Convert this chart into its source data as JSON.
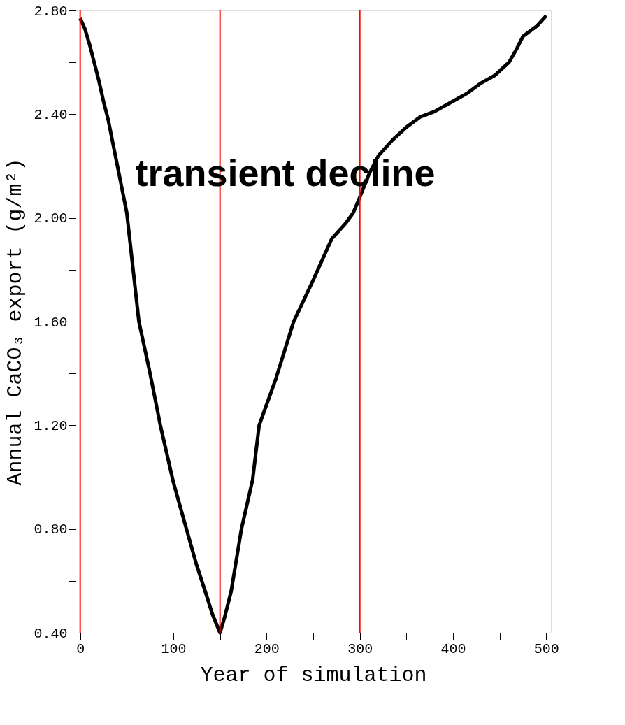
{
  "chart_data": {
    "type": "line",
    "xlabel": "Year of simulation",
    "ylabel": "Annual CaCO₃ export (g/m²)",
    "annotations": [
      "transient decline"
    ],
    "x": [
      0,
      5,
      10,
      15,
      20,
      25,
      30,
      35,
      40,
      50,
      63,
      75,
      86,
      100,
      114,
      125,
      135,
      142,
      150,
      155,
      162,
      173,
      185,
      192,
      210,
      229,
      250,
      270,
      285,
      293,
      300,
      310,
      320,
      335,
      350,
      365,
      380,
      400,
      415,
      430,
      445,
      460,
      468,
      475,
      490,
      500
    ],
    "series": [
      {
        "color": "#000000",
        "values": [
          2.77,
          2.73,
          2.67,
          2.6,
          2.53,
          2.45,
          2.38,
          2.29,
          2.2,
          2.02,
          1.6,
          1.4,
          1.2,
          0.98,
          0.8,
          0.66,
          0.55,
          0.47,
          0.4,
          0.46,
          0.56,
          0.8,
          0.99,
          1.2,
          1.38,
          1.6,
          1.76,
          1.92,
          1.98,
          2.02,
          2.08,
          2.17,
          2.24,
          2.3,
          2.35,
          2.39,
          2.41,
          2.45,
          2.48,
          2.52,
          2.55,
          2.6,
          2.65,
          2.7,
          2.74,
          2.78
        ]
      }
    ],
    "xlim": [
      -5,
      505
    ],
    "xticks": [
      0,
      {
        "value": 50,
        "label": null
      },
      100,
      {
        "value": 150,
        "label": null
      },
      200,
      {
        "value": 250,
        "label": null
      },
      300,
      {
        "value": 350,
        "label": null
      },
      400,
      {
        "value": 450,
        "label": null
      },
      500
    ],
    "ylim": [
      0.4,
      2.8
    ],
    "yticks": [
      {
        "value": 0.4,
        "label": "0.40"
      },
      {
        "value": 0.6,
        "label": null
      },
      {
        "value": 0.8,
        "label": "0.80"
      },
      {
        "value": 1.0,
        "label": null
      },
      {
        "value": 1.2,
        "label": "1.20"
      },
      {
        "value": 1.4,
        "label": null
      },
      {
        "value": 1.6,
        "label": "1.60"
      },
      {
        "value": 1.8,
        "label": null
      },
      {
        "value": 2.0,
        "label": "2.00"
      },
      {
        "value": 2.2,
        "label": null
      },
      {
        "value": 2.4,
        "label": "2.40"
      },
      {
        "value": 2.6,
        "label": null
      },
      {
        "value": 2.8,
        "label": "2.80"
      }
    ],
    "ref_lines": [
      {
        "axis": "x",
        "value": 0,
        "color": "#ff0000"
      },
      {
        "axis": "x",
        "value": 150,
        "color": "#ff0000"
      },
      {
        "axis": "x",
        "value": 300,
        "color": "#ff0000"
      }
    ],
    "grid": false,
    "legend": false,
    "marker": "none",
    "line_style": "solid"
  }
}
